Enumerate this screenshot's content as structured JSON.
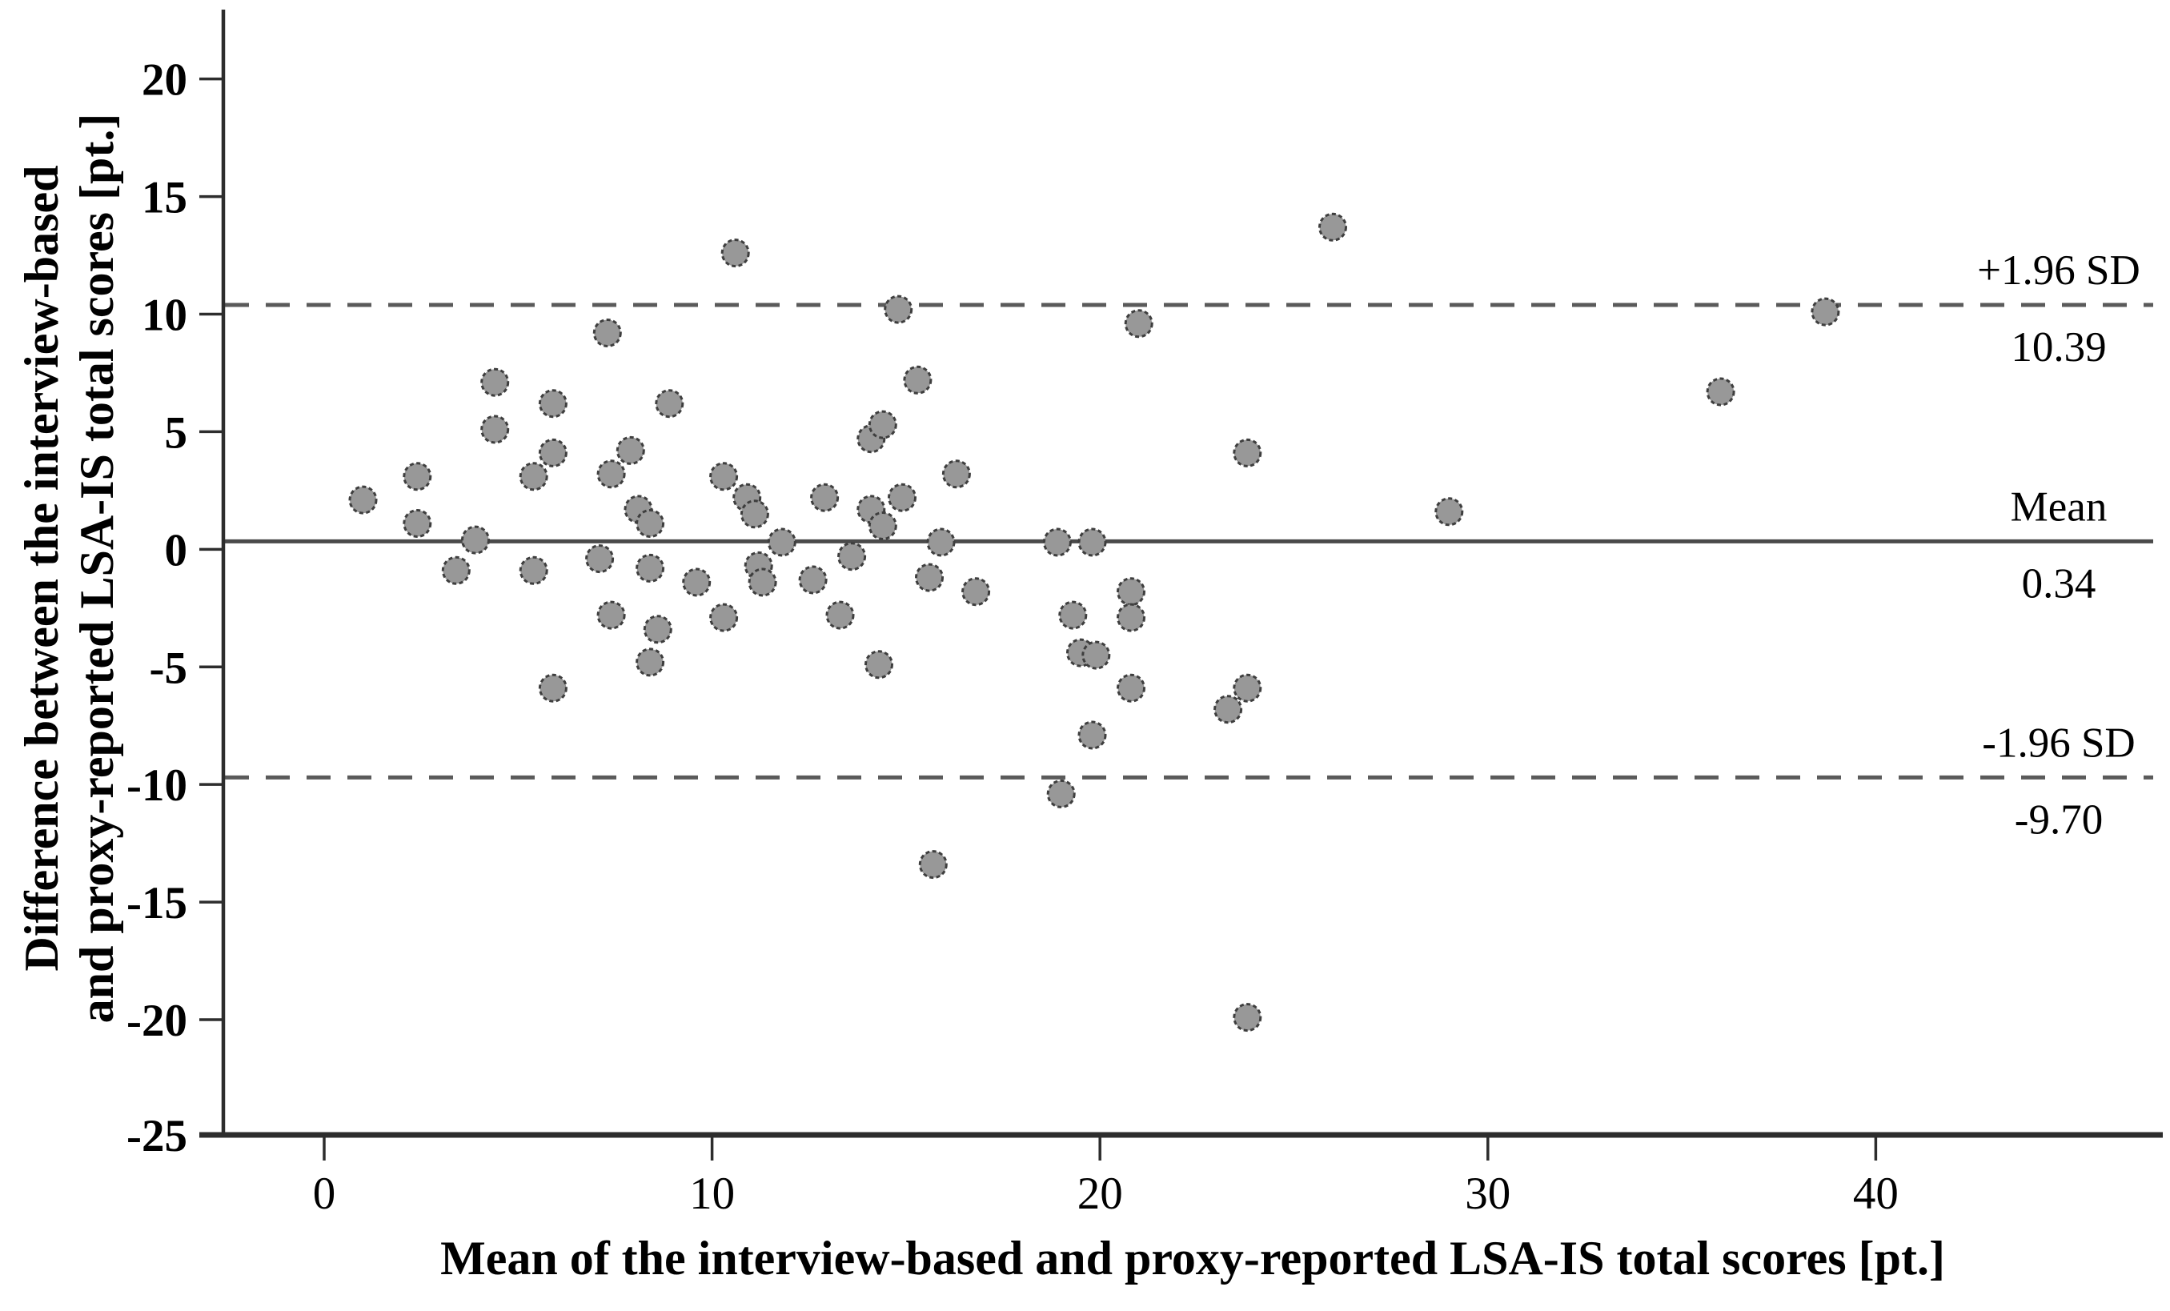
{
  "figure": {
    "background_color": "#ffffff",
    "description": "Bland-Altman scatter plot of LSA-IS total scores"
  },
  "chart_data": {
    "type": "scatter",
    "title": "",
    "xlabel": "Mean of the interview-based and proxy-reported LSA-IS total scores [pt.]",
    "ylabel_line1": "Difference between the interview-based",
    "ylabel_line2": "and proxy-reported LSA-IS total scores [pt.]",
    "xlim": [
      -2.6,
      47.4
    ],
    "ylim": [
      -24.9,
      22.95
    ],
    "grid": false,
    "legend": null,
    "xticks": {
      "values": [
        0,
        10,
        20,
        30,
        40
      ],
      "labels": [
        "0",
        "10",
        "20",
        "30",
        "40"
      ]
    },
    "yticks": {
      "values": [
        20,
        15,
        10,
        5,
        0,
        -5,
        -10,
        -15,
        -20,
        -25
      ],
      "labels": [
        "20",
        "15",
        "10",
        "5",
        "0",
        "-5",
        "-10",
        "-15",
        "-20",
        "-25"
      ]
    },
    "reference_lines": [
      {
        "name": "upper-loa",
        "label": "+1.96 SD",
        "value": 10.39,
        "value_label": "10.39",
        "style": "dashed"
      },
      {
        "name": "mean",
        "label": "Mean",
        "value": 0.34,
        "value_label": "0.34",
        "style": "solid"
      },
      {
        "name": "lower-loa",
        "label": "-1.96 SD",
        "value": -9.7,
        "value_label": "-9.70",
        "style": "dashed"
      }
    ],
    "marker": {
      "shape": "circle",
      "fill": "#989898",
      "stroke": "#3e3e3e"
    },
    "colors": {
      "axis": "#2d2d2d",
      "mean_line": "#4a4a4a",
      "loa_line": "#5a5a5a",
      "text": "#000000"
    },
    "points": [
      [
        1.0,
        2.1
      ],
      [
        2.4,
        3.1
      ],
      [
        2.4,
        1.1
      ],
      [
        3.4,
        -0.9
      ],
      [
        3.9,
        0.4
      ],
      [
        4.4,
        7.1
      ],
      [
        4.4,
        5.1
      ],
      [
        5.4,
        3.1
      ],
      [
        5.4,
        -0.9
      ],
      [
        5.9,
        6.2
      ],
      [
        5.9,
        4.1
      ],
      [
        5.9,
        -5.9
      ],
      [
        7.1,
        -0.4
      ],
      [
        7.3,
        9.2
      ],
      [
        7.4,
        3.2
      ],
      [
        7.4,
        -2.8
      ],
      [
        7.9,
        4.2
      ],
      [
        8.1,
        1.7
      ],
      [
        8.4,
        1.1
      ],
      [
        8.4,
        -0.8
      ],
      [
        8.6,
        -3.4
      ],
      [
        8.4,
        -4.8
      ],
      [
        8.9,
        6.2
      ],
      [
        9.6,
        -1.4
      ],
      [
        10.3,
        3.1
      ],
      [
        10.3,
        -2.9
      ],
      [
        10.6,
        12.6
      ],
      [
        10.9,
        2.2
      ],
      [
        11.1,
        1.5
      ],
      [
        11.2,
        -0.7
      ],
      [
        11.3,
        -1.4
      ],
      [
        11.8,
        0.3
      ],
      [
        12.6,
        -1.3
      ],
      [
        12.9,
        2.2
      ],
      [
        13.3,
        -2.8
      ],
      [
        13.6,
        -0.3
      ],
      [
        14.1,
        4.7
      ],
      [
        14.4,
        5.3
      ],
      [
        14.1,
        1.7
      ],
      [
        14.4,
        1.0
      ],
      [
        14.3,
        -4.9
      ],
      [
        14.9,
        2.2
      ],
      [
        14.8,
        10.2
      ],
      [
        15.3,
        7.2
      ],
      [
        15.6,
        -1.2
      ],
      [
        15.7,
        -13.4
      ],
      [
        15.9,
        0.3
      ],
      [
        16.3,
        3.2
      ],
      [
        16.8,
        -1.8
      ],
      [
        18.9,
        0.3
      ],
      [
        19.8,
        0.3
      ],
      [
        19.3,
        -2.8
      ],
      [
        19.5,
        -4.4
      ],
      [
        19.9,
        -4.5
      ],
      [
        19.8,
        -7.9
      ],
      [
        19.0,
        -10.4
      ],
      [
        20.8,
        -1.8
      ],
      [
        20.8,
        -2.9
      ],
      [
        20.8,
        -5.9
      ],
      [
        21.0,
        9.6
      ],
      [
        23.3,
        -6.8
      ],
      [
        23.8,
        -5.9
      ],
      [
        23.8,
        4.1
      ],
      [
        23.8,
        -19.9
      ],
      [
        26.0,
        13.7
      ],
      [
        29.0,
        1.6
      ],
      [
        36.0,
        6.7
      ],
      [
        38.7,
        10.1
      ]
    ]
  }
}
